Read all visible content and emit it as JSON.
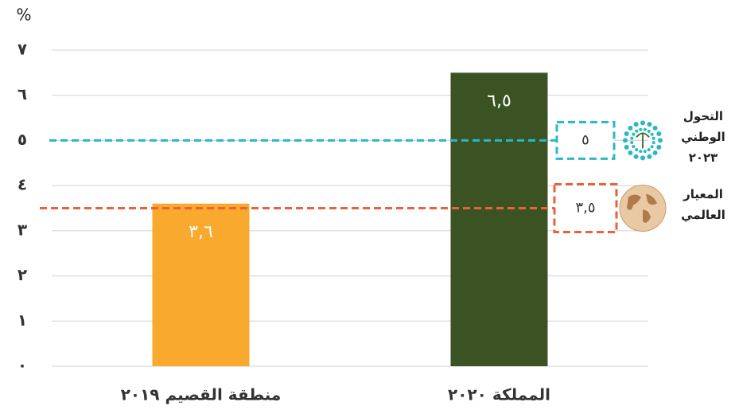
{
  "chart_data": {
    "type": "bar",
    "y_axis_label": "%",
    "categories": [
      "منطقة القصيم ٢٠١٩",
      "المملكة ٢٠٢٠"
    ],
    "values": [
      3.6,
      6.5
    ],
    "value_labels": [
      "٣,٦",
      "٦,٥"
    ],
    "colors": [
      "#f9a92d",
      "#3b5323"
    ],
    "ylim": [
      0,
      7
    ],
    "yticks": [
      {
        "value": 0,
        "label": "٠"
      },
      {
        "value": 1,
        "label": "١"
      },
      {
        "value": 2,
        "label": "٢"
      },
      {
        "value": 3,
        "label": "٣"
      },
      {
        "value": 4,
        "label": "٤"
      },
      {
        "value": 5,
        "label": "٥"
      },
      {
        "value": 6,
        "label": "٦"
      },
      {
        "value": 7,
        "label": "٧"
      }
    ],
    "grid": true,
    "reference_lines": [
      {
        "value": 5,
        "value_label": "٥",
        "label_lines": [
          "التحول",
          "الوطني",
          "٢٠٢٣"
        ],
        "color": "#29b8c4"
      },
      {
        "value": 3.5,
        "value_label": "٣,٥",
        "label_lines": [
          "المعيار",
          "العالمي"
        ],
        "color": "#e8623a"
      }
    ]
  }
}
